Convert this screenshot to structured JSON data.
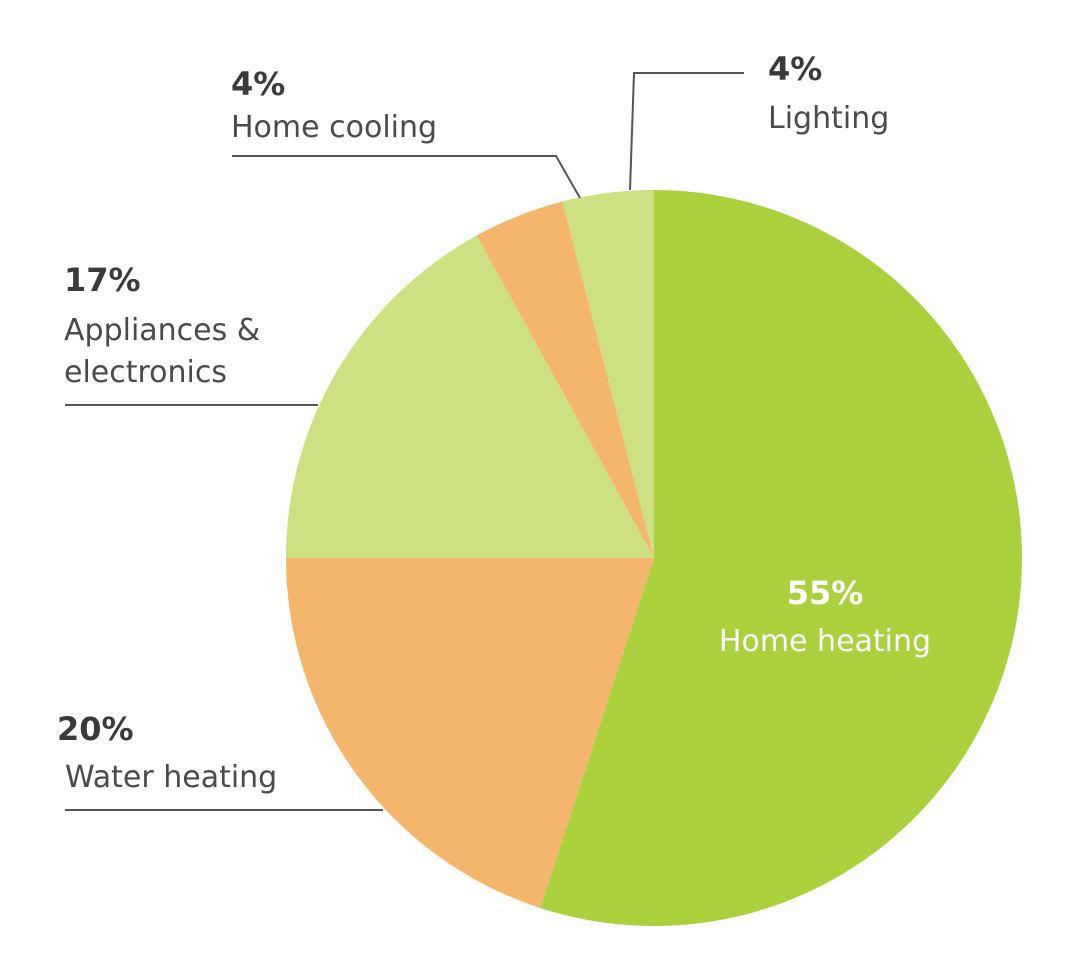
{
  "chart_data": {
    "type": "pie",
    "slices": [
      {
        "label": "Home heating",
        "value": 55,
        "value_label": "55%",
        "color": "#aad03c"
      },
      {
        "label": "Water heating",
        "value": 20,
        "value_label": "20%",
        "color": "#f4b66c"
      },
      {
        "label_lines": [
          "Appliances &",
          "electronics"
        ],
        "value": 17,
        "value_label": "17%",
        "color": "#cde082"
      },
      {
        "label": "Home cooling",
        "value": 4,
        "value_label": "4%",
        "color": "#f4b66c"
      },
      {
        "label": "Lighting",
        "value": 4,
        "value_label": "4%",
        "color": "#cde082"
      }
    ]
  }
}
